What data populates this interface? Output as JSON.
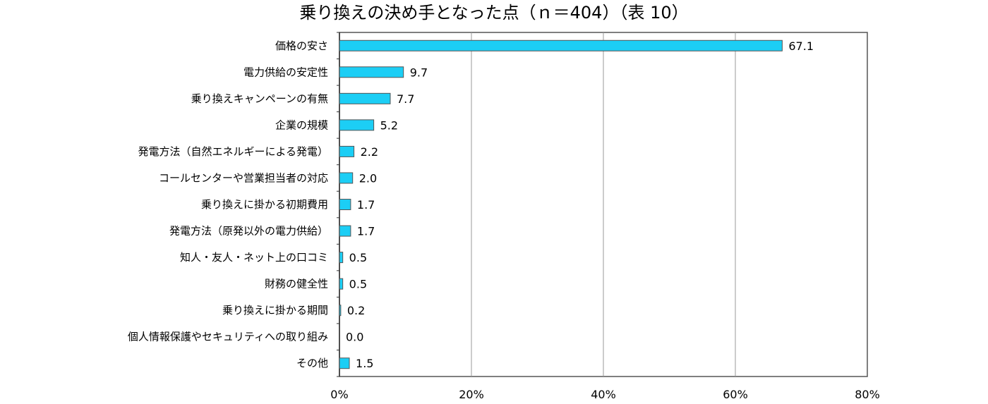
{
  "chart_data": {
    "type": "bar",
    "orientation": "horizontal",
    "title": "乗り換えの決め手となった点（ｎ＝404）（表 10）",
    "xlabel": "",
    "ylabel": "",
    "categories": [
      "価格の安さ",
      "電力供給の安定性",
      "乗り換えキャンペーンの有無",
      "企業の規模",
      "発電方法（自然エネルギーによる発電）",
      "コールセンターや営業担当者の対応",
      "乗り換えに掛かる初期費用",
      "発電方法（原発以外の電力供給）",
      "知人・友人・ネット上の口コミ",
      "財務の健全性",
      "乗り換えに掛かる期間",
      "個人情報保護やセキュリティへの取り組み",
      "その他"
    ],
    "values": [
      67.1,
      9.7,
      7.7,
      5.2,
      2.2,
      2.0,
      1.7,
      1.7,
      0.5,
      0.5,
      0.2,
      0.0,
      1.5
    ],
    "value_labels": [
      "67.1",
      "9.7",
      "7.7",
      "5.2",
      "2.2",
      "2.0",
      "1.7",
      "1.7",
      "0.5",
      "0.5",
      "0.2",
      "0.0",
      "1.5"
    ],
    "xlim": [
      0,
      80
    ],
    "xticks": [
      0,
      20,
      40,
      60,
      80
    ],
    "xtick_labels": [
      "0%",
      "20%",
      "40%",
      "60%",
      "80%"
    ],
    "grid": true,
    "legend": "none",
    "colors": {
      "bar_fill": "#1ccef5",
      "bar_stroke": "#555555",
      "grid": "#999999",
      "axis": "#555555"
    }
  }
}
